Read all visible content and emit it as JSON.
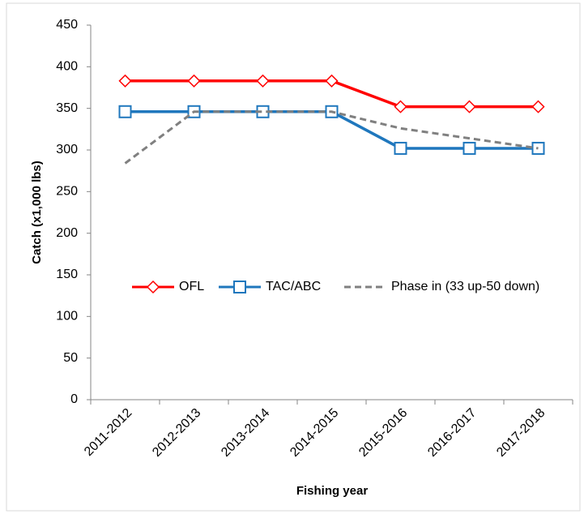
{
  "chart_data": {
    "type": "line",
    "x_label": "Fishing year",
    "y_label": "Catch (x1,000 lbs)",
    "categories": [
      "2011-2012",
      "2012-2013",
      "2013-2014",
      "2014-2015",
      "2015-2016",
      "2016-2017",
      "2017-2018"
    ],
    "series": [
      {
        "name": "OFL",
        "color": "#ff0000",
        "marker": "diamond",
        "values": [
          383,
          383,
          383,
          383,
          352,
          352,
          352
        ]
      },
      {
        "name": "TAC/ABC",
        "color": "#1f77bd",
        "marker": "square",
        "values": [
          346,
          346,
          346,
          346,
          302,
          302,
          302
        ]
      },
      {
        "name": "Phase in (33 up-50 down)",
        "color": "#808080",
        "dashed": true,
        "values": [
          284,
          346,
          346,
          346,
          326,
          314,
          302
        ]
      }
    ],
    "ylim": [
      0,
      450
    ],
    "yticks": [
      0,
      50,
      100,
      150,
      200,
      250,
      300,
      350,
      400,
      450
    ],
    "grid": false,
    "legend": "center"
  }
}
